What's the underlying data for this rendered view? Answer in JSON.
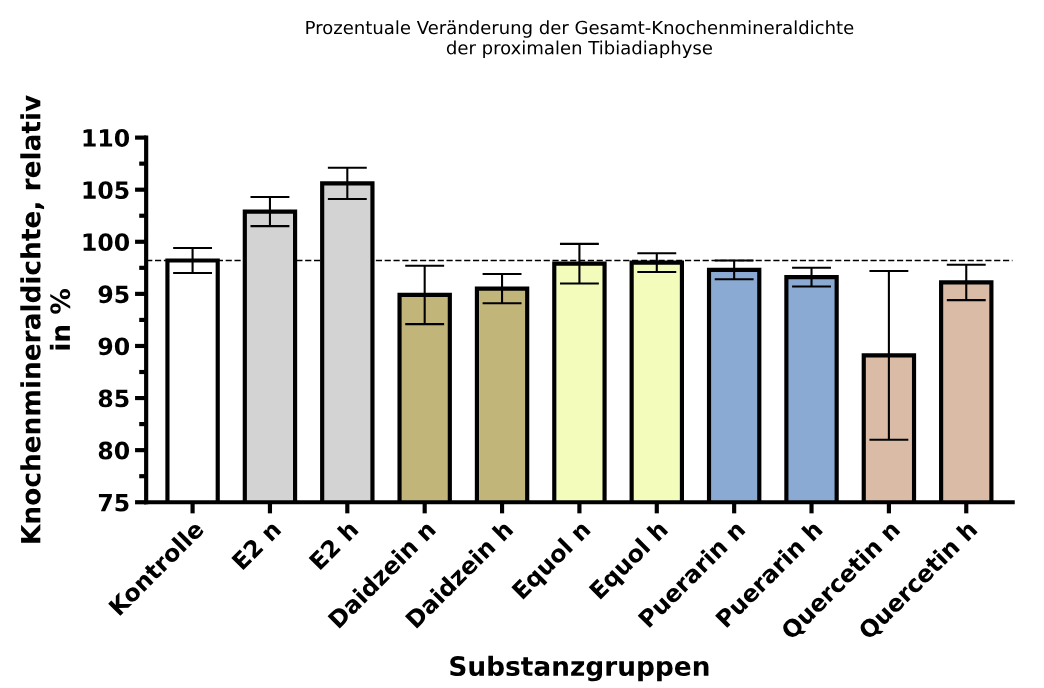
{
  "chart_data": {
    "type": "bar",
    "title": "Prozentuale Veränderung der Gesamt-Knochenmineraldichte\nder proximalen Tibiadiaphyse",
    "xlabel": "Substanzgruppen",
    "ylabel": "Knochenmineraldichte, relativ\nin %",
    "categories": [
      "Kontrolle",
      "E2 n",
      "E2 h",
      "Daidzein n",
      "Daidzein h",
      "Equol n",
      "Equol h",
      "Puerarin n",
      "Puerarin h",
      "Quercetin n",
      "Quercetin h"
    ],
    "values": [
      98.2,
      102.9,
      105.6,
      94.9,
      95.5,
      97.9,
      98.0,
      97.3,
      96.6,
      89.1,
      96.1
    ],
    "errors": [
      1.2,
      1.4,
      1.5,
      2.8,
      1.4,
      1.9,
      0.9,
      0.9,
      0.9,
      8.1,
      1.7
    ],
    "colors": [
      "#ffffff",
      "#d3d3d3",
      "#d3d3d3",
      "#c2b57a",
      "#c2b57a",
      "#f3fcbb",
      "#f3fcbb",
      "#8aaad4",
      "#8aaad4",
      "#d9bba6",
      "#d9bba6"
    ],
    "ylim": [
      75,
      110
    ],
    "yticks": [
      75,
      80,
      85,
      90,
      95,
      100,
      105,
      110
    ],
    "ref_lines": [
      {
        "axis": "y",
        "value": 98.2,
        "line_style": "dashed",
        "color": "#000000"
      }
    ],
    "grid": false
  }
}
